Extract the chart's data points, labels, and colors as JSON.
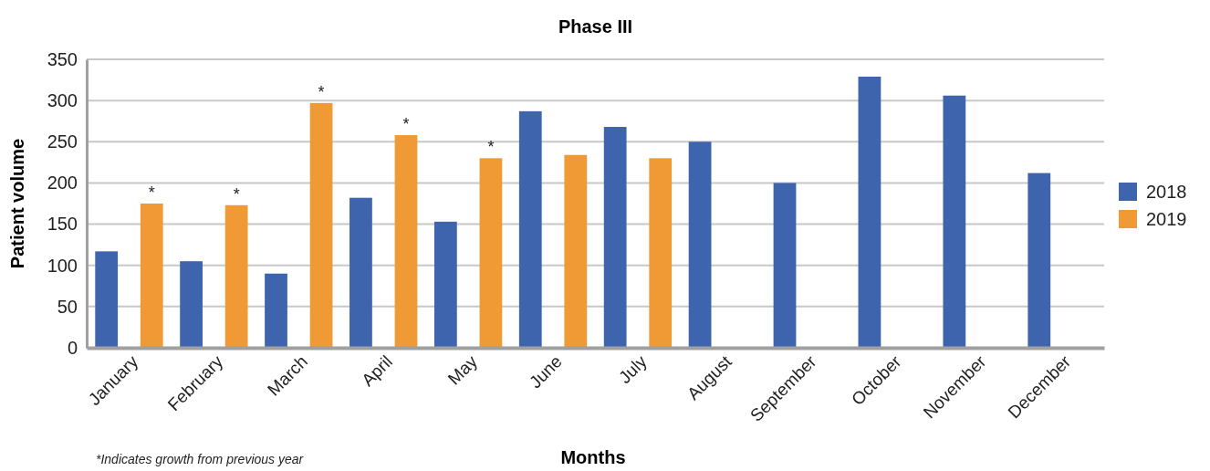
{
  "chart_data": {
    "type": "bar",
    "title": "Phase III",
    "xlabel": "Months",
    "ylabel": "Patient volume",
    "categories": [
      "January",
      "February",
      "March",
      "April",
      "May",
      "June",
      "July",
      "August",
      "September",
      "October",
      "November",
      "December"
    ],
    "series": [
      {
        "name": "2018",
        "color": "#3f64ae",
        "values": [
          117,
          105,
          90,
          182,
          153,
          287,
          268,
          250,
          200,
          329,
          306,
          212
        ]
      },
      {
        "name": "2019",
        "color": "#ef9a34",
        "values": [
          175,
          173,
          297,
          258,
          230,
          234,
          230,
          null,
          null,
          null,
          null,
          null
        ],
        "value_labels": [
          "*",
          "*",
          "*",
          "*",
          "*",
          null,
          null,
          null,
          null,
          null,
          null,
          null
        ]
      }
    ],
    "ylim": [
      0,
      350
    ],
    "yticks": [
      0,
      50,
      100,
      150,
      200,
      250,
      300,
      350
    ],
    "grid": "y",
    "legend": "right",
    "annotations": [
      "*Indicates growth from previous year"
    ]
  }
}
